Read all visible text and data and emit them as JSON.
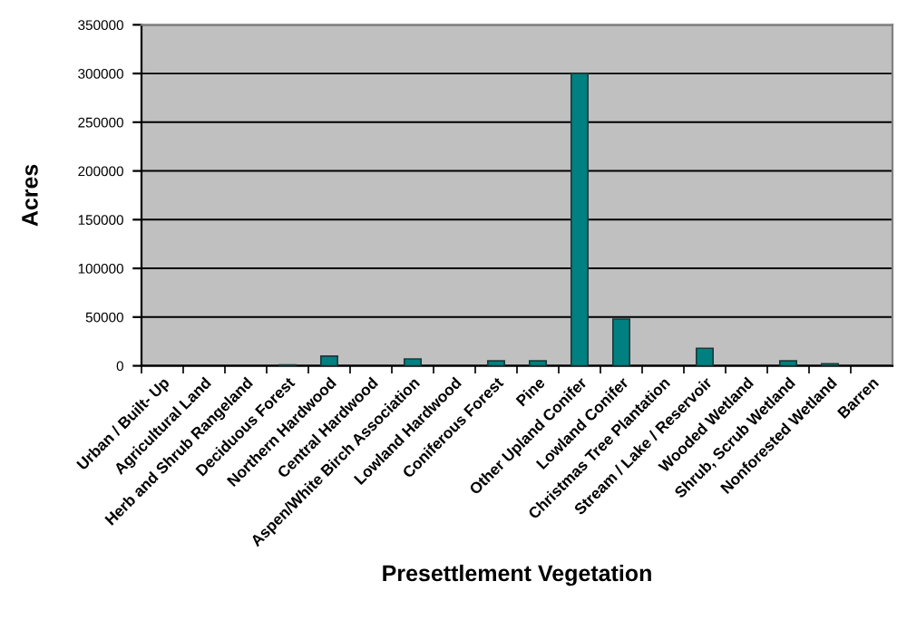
{
  "chart_data": {
    "type": "bar",
    "xlabel": "Presettlement Vegetation",
    "ylabel": "Acres",
    "categories": [
      "Urban / Built- Up",
      "Agricultural Land",
      "Herb and Shrub Rangeland",
      "Deciduous Forest",
      "Northern Hardwood",
      "Central Hardwood",
      "Aspen/White Birch Association",
      "Lowland Hardwood",
      "Coniferous Forest",
      "Pine",
      "Other Upland Conifer",
      "Lowland Conifer",
      "Christmas Tree Plantation",
      "Stream / Lake / Reservoir",
      "Wooded Wetland",
      "Shrub, Scrub Wetland",
      "Nonforested Wetland",
      "Barren"
    ],
    "values": [
      0,
      0,
      0,
      1000,
      10000,
      0,
      7000,
      0,
      5000,
      5000,
      300000,
      48000,
      0,
      18000,
      0,
      5000,
      2000,
      0
    ],
    "color": "#008080",
    "ylim": [
      0,
      350000
    ],
    "yticks": [
      0,
      50000,
      100000,
      150000,
      200000,
      250000,
      300000,
      350000
    ],
    "grid": "y"
  }
}
